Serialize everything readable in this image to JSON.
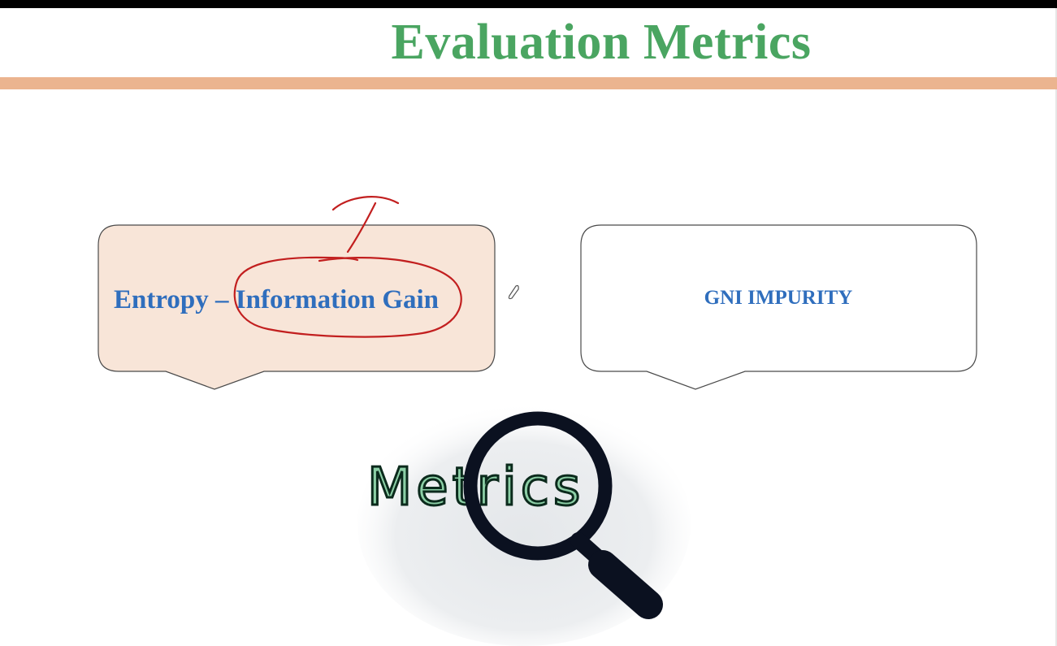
{
  "slide": {
    "title": "Evaluation Metrics",
    "cards": [
      {
        "label": "Entropy – Information Gain",
        "highlighted": true
      },
      {
        "label": "GNI IMPURITY",
        "highlighted": false
      }
    ],
    "illustration_word": "Metrics",
    "illustration_icon": "magnifying-glass-icon"
  },
  "colors": {
    "title": "#4aa561",
    "divider": "#ebb48f",
    "card_label": "#2f6ebd",
    "card_left_fill": "#f8e5d8",
    "card_border": "#4a4a4a",
    "annotation_ink": "#c21f1f",
    "metrics_fill": "#8ccfa6",
    "lens": "#0b1120"
  }
}
